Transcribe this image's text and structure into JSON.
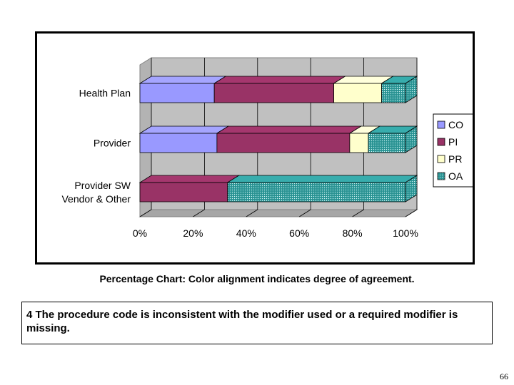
{
  "chart_data": {
    "type": "bar",
    "orientation": "horizontal",
    "stacked": true,
    "percent": true,
    "three_d": true,
    "categories": [
      "Health Plan",
      "Provider",
      "Provider SW Vendor & Other"
    ],
    "category_label_lines": [
      [
        "Health Plan"
      ],
      [
        "Provider"
      ],
      [
        "Provider SW",
        "Vendor & Other"
      ]
    ],
    "series": [
      {
        "name": "CO",
        "color": "#9999ff",
        "pattern": "solid",
        "values": [
          28,
          29,
          0
        ]
      },
      {
        "name": "PI",
        "color": "#993366",
        "pattern": "solid",
        "values": [
          45,
          50,
          33
        ]
      },
      {
        "name": "PR",
        "color": "#ffffcc",
        "pattern": "solid",
        "values": [
          18,
          7,
          0
        ]
      },
      {
        "name": "OA",
        "color": "#33a0a0",
        "pattern": "dotted",
        "values": [
          9,
          14,
          67
        ]
      }
    ],
    "xticks": [
      "0%",
      "20%",
      "40%",
      "60%",
      "80%",
      "100%"
    ],
    "xlim": [
      0,
      100
    ],
    "legend_position": "right",
    "title": "",
    "xlabel": "",
    "ylabel": ""
  },
  "caption": "Percentage Chart: Color alignment indicates degree of agreement.",
  "note": "4 The procedure code is inconsistent with the modifier used or a required modifier is missing.",
  "page_number": "66"
}
